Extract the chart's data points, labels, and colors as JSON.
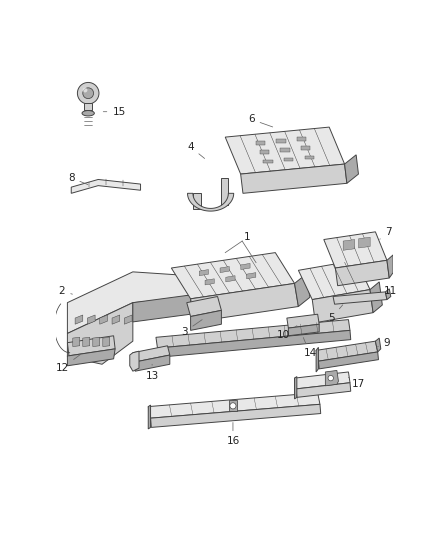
{
  "bg_color": "#ffffff",
  "line_color": "#444444",
  "fill_light": "#e8e8e8",
  "fill_mid": "#d0d0d0",
  "fill_dark": "#aaaaaa",
  "figsize": [
    4.38,
    5.33
  ],
  "dpi": 100
}
